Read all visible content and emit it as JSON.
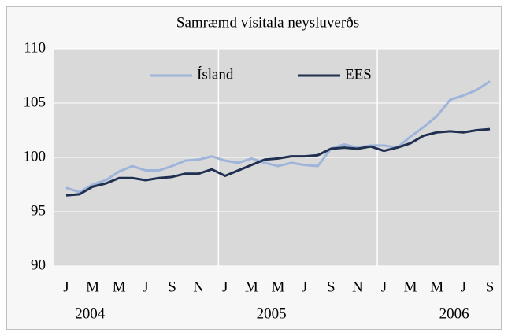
{
  "chart_data": {
    "type": "line",
    "title": "Samræmd vísitala neysluverðs",
    "categories": [
      "J",
      null,
      "M",
      null,
      "M",
      null,
      "J",
      null,
      "S",
      null,
      "N",
      null,
      "J",
      null,
      "M",
      null,
      "M",
      null,
      "J",
      null,
      "S",
      null,
      "N",
      null,
      "J",
      null,
      "M",
      null,
      "M",
      null,
      "J",
      null,
      "S"
    ],
    "year_labels": [
      "2004",
      "2005",
      "2006"
    ],
    "series": [
      {
        "name": "Ísland",
        "color": "#9fb4da",
        "values": [
          97.2,
          96.8,
          97.5,
          97.9,
          98.7,
          99.2,
          98.8,
          98.8,
          99.2,
          99.7,
          99.8,
          100.1,
          99.7,
          99.5,
          99.9,
          99.5,
          99.2,
          99.5,
          99.3,
          99.2,
          100.8,
          101.2,
          100.9,
          101.1,
          101.1,
          100.9,
          101.9,
          102.8,
          103.8,
          105.3,
          105.7,
          106.2,
          107.0
        ]
      },
      {
        "name": "EES",
        "color": "#1f3050",
        "values": [
          96.5,
          96.6,
          97.3,
          97.6,
          98.1,
          98.1,
          97.9,
          98.1,
          98.2,
          98.5,
          98.5,
          98.9,
          98.3,
          98.8,
          99.3,
          99.8,
          99.9,
          100.1,
          100.1,
          100.2,
          100.8,
          100.9,
          100.8,
          101.0,
          100.6,
          100.9,
          101.3,
          102.0,
          102.3,
          102.4,
          102.3,
          102.5,
          102.6
        ]
      }
    ],
    "ylim": [
      90,
      110
    ],
    "yticks": [
      90,
      95,
      100,
      105,
      110
    ],
    "grid": true,
    "legend": "top"
  }
}
